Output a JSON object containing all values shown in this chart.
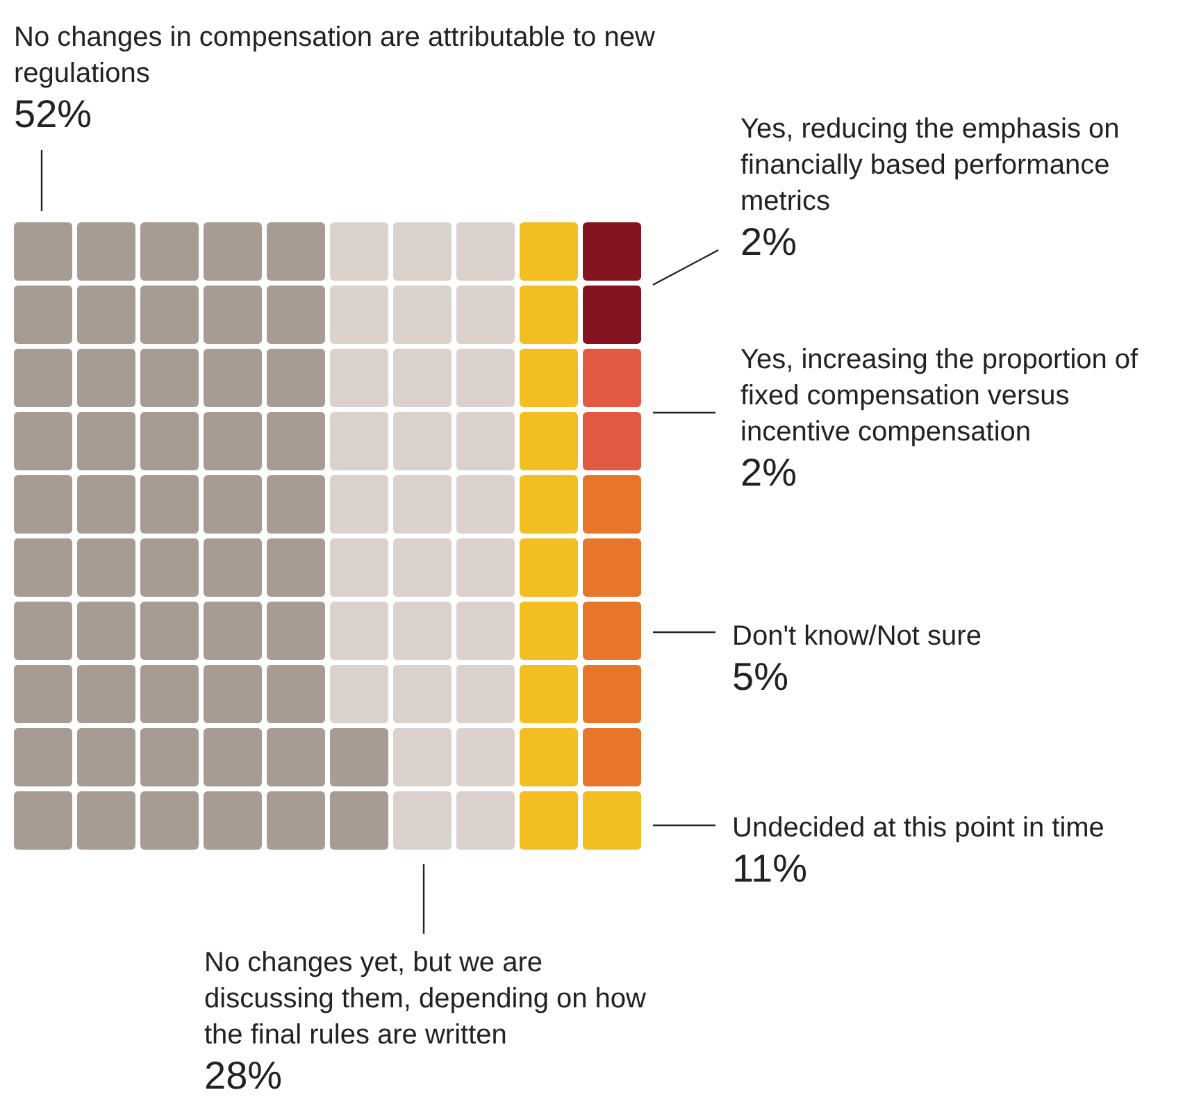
{
  "chart_data": {
    "type": "other",
    "categories": [
      "No changes in compensation are attributable to new regulations",
      "No changes yet, but we are discussing them, depending on how the final rules are written",
      "Undecided at this point in time",
      "Don't know/Not sure",
      "Yes, increasing the proportion of fixed compensation versus incentive compensation",
      "Yes, reducing the emphasis on financially based performance metrics"
    ],
    "values": [
      52,
      28,
      11,
      5,
      2,
      2
    ],
    "value_labels": [
      "52%",
      "28%",
      "11%",
      "5%",
      "2%",
      "2%"
    ],
    "colors": [
      "#a89b91",
      "#dbd2cd",
      "#f3be21",
      "#e8762a",
      "#e35a43",
      "#84141f"
    ]
  }
}
